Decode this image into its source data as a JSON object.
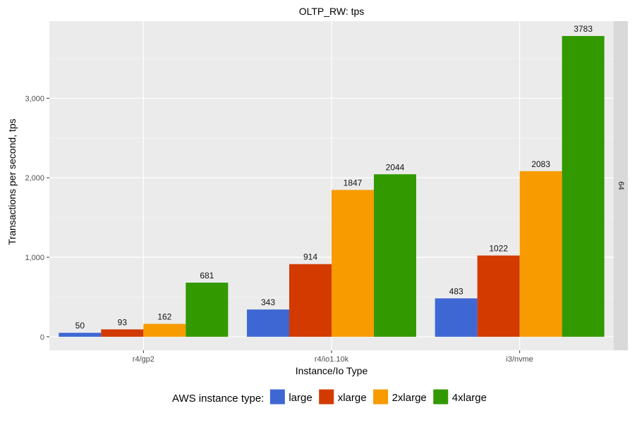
{
  "chart_data": {
    "type": "bar",
    "title": "OLTP_RW: tps",
    "xlabel": "Instance/Io Type",
    "ylabel": "Transactions per second, tps",
    "categories": [
      "r4/gp2",
      "r4/io1.10k",
      "i3/nvme"
    ],
    "series": [
      {
        "name": "large",
        "color": "#3F67D4",
        "values": [
          50,
          343,
          483
        ]
      },
      {
        "name": "xlarge",
        "color": "#D23A00",
        "values": [
          93,
          914,
          1022
        ]
      },
      {
        "name": "2xlarge",
        "color": "#F79B00",
        "values": [
          162,
          1847,
          2083
        ]
      },
      {
        "name": "4xlarge",
        "color": "#339900",
        "values": [
          681,
          2044,
          3783
        ]
      }
    ],
    "y_ticks": [
      0,
      1000,
      2000,
      3000
    ],
    "y_tick_labels": [
      "0",
      "1,000",
      "2,000",
      "3,000"
    ],
    "ylim": [
      -170,
      3970
    ],
    "facet_label": "64",
    "legend": {
      "title": "AWS instance type:",
      "position": "bottom"
    },
    "grid": true,
    "panel_background": "#EBEBEB",
    "strip_background": "#D9D9D9"
  }
}
